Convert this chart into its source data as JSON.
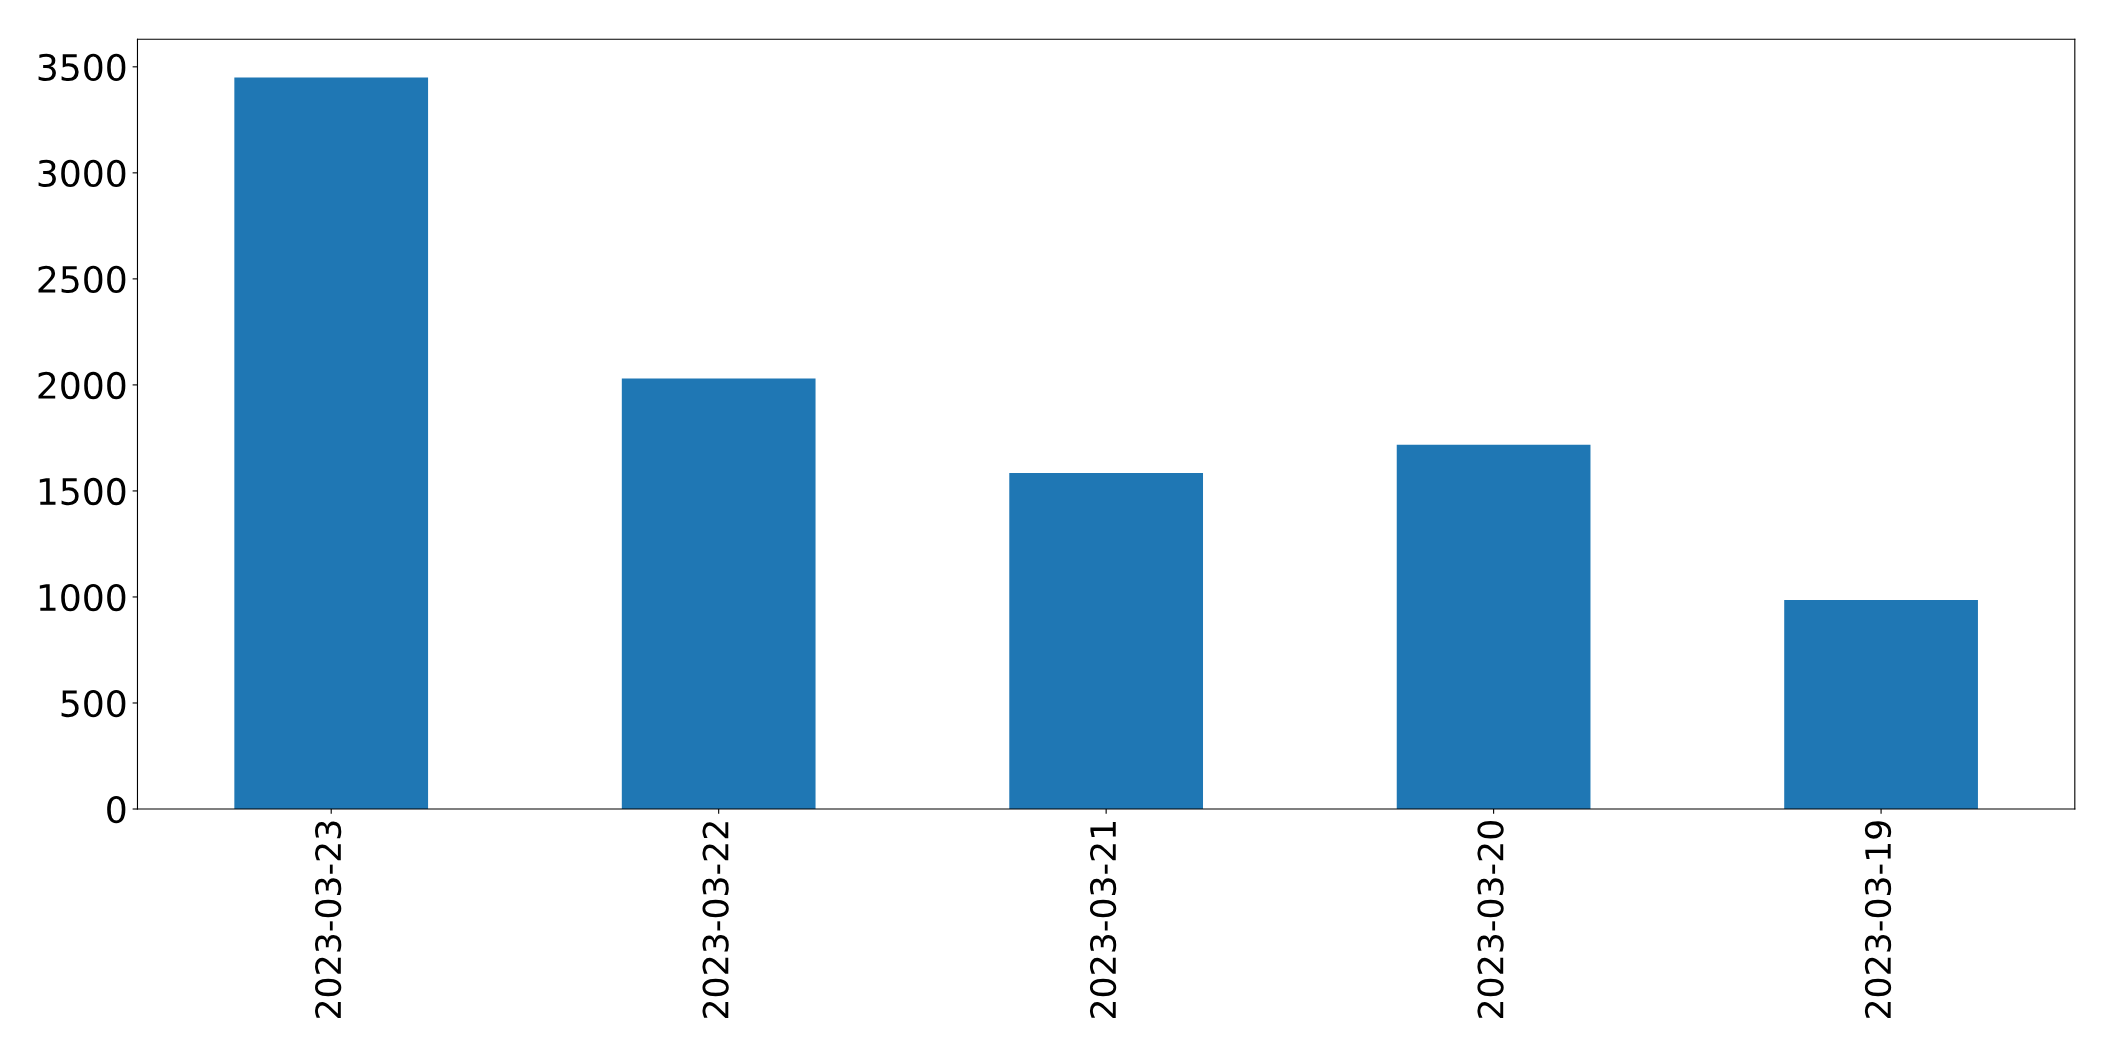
{
  "chart_data": {
    "type": "bar",
    "categories": [
      "2023-03-23",
      "2023-03-22",
      "2023-03-21",
      "2023-03-20",
      "2023-03-19"
    ],
    "values": [
      3450,
      2030,
      1585,
      1718,
      986
    ],
    "color": "#1f77b4",
    "ylim": [
      0,
      3630
    ],
    "yticks": [
      0,
      500,
      1000,
      1500,
      2000,
      2500,
      3000,
      3500
    ],
    "grid": false
  }
}
